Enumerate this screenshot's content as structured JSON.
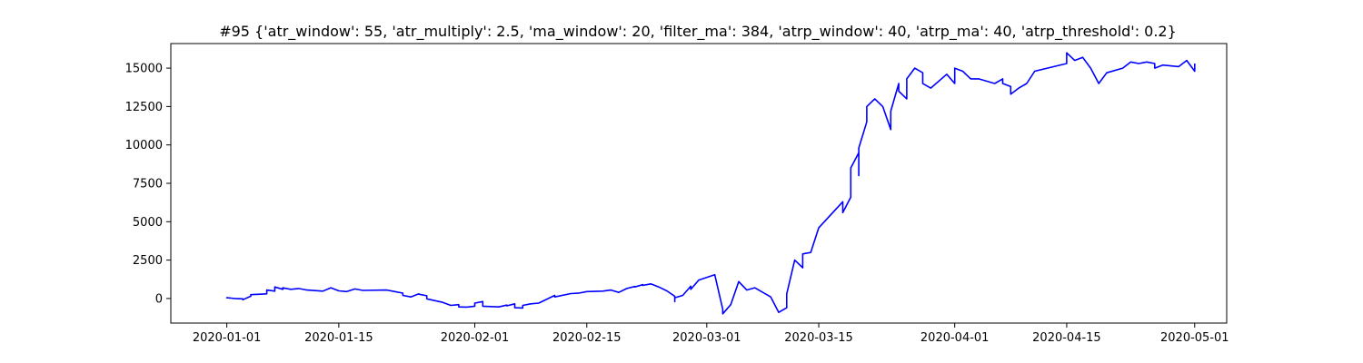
{
  "chart_data": {
    "type": "line",
    "title": "#95 {'atr_window': 55, 'atr_multiply': 2.5, 'ma_window': 20, 'filter_ma': 384, 'atrp_window': 40, 'atrp_ma': 40, 'atrp_threshold': 0.2}",
    "xlabel": "",
    "ylabel": "",
    "x_axis": "date",
    "xlim": [
      "2019-12-25",
      "2020-05-05"
    ],
    "ylim": [
      -1600,
      16600
    ],
    "grid": false,
    "x_ticks": [
      "2020-01-01",
      "2020-01-15",
      "2020-02-01",
      "2020-02-15",
      "2020-03-01",
      "2020-03-15",
      "2020-04-01",
      "2020-04-15",
      "2020-05-01"
    ],
    "y_ticks": [
      0,
      2500,
      5000,
      7500,
      10000,
      12500,
      15000
    ],
    "series": [
      {
        "color": "#0000ff",
        "points": [
          [
            "2020-01-01",
            0
          ],
          [
            "2020-01-01",
            50
          ],
          [
            "2020-01-02",
            0
          ],
          [
            "2020-01-03",
            -20
          ],
          [
            "2020-01-03",
            -80
          ],
          [
            "2020-01-04",
            150
          ],
          [
            "2020-01-04",
            250
          ],
          [
            "2020-01-06",
            300
          ],
          [
            "2020-01-06",
            550
          ],
          [
            "2020-01-07",
            480
          ],
          [
            "2020-01-07",
            750
          ],
          [
            "2020-01-08",
            600
          ],
          [
            "2020-01-08",
            700
          ],
          [
            "2020-01-09",
            600
          ],
          [
            "2020-01-10",
            650
          ],
          [
            "2020-01-11",
            550
          ],
          [
            "2020-01-13",
            480
          ],
          [
            "2020-01-14",
            700
          ],
          [
            "2020-01-15",
            500
          ],
          [
            "2020-01-16",
            450
          ],
          [
            "2020-01-17",
            620
          ],
          [
            "2020-01-18",
            530
          ],
          [
            "2020-01-21",
            550
          ],
          [
            "2020-01-22",
            450
          ],
          [
            "2020-01-23",
            350
          ],
          [
            "2020-01-23",
            200
          ],
          [
            "2020-01-24",
            100
          ],
          [
            "2020-01-25",
            300
          ],
          [
            "2020-01-25",
            280
          ],
          [
            "2020-01-26",
            180
          ],
          [
            "2020-01-26",
            -20
          ],
          [
            "2020-01-28",
            -250
          ],
          [
            "2020-01-29",
            -450
          ],
          [
            "2020-01-30",
            -400
          ],
          [
            "2020-01-30",
            -550
          ],
          [
            "2020-01-31",
            -560
          ],
          [
            "2020-02-01",
            -500
          ],
          [
            "2020-02-01",
            -300
          ],
          [
            "2020-02-02",
            -200
          ],
          [
            "2020-02-02",
            -500
          ],
          [
            "2020-02-04",
            -550
          ],
          [
            "2020-02-05",
            -430
          ],
          [
            "2020-02-05",
            -480
          ],
          [
            "2020-02-06",
            -350
          ],
          [
            "2020-02-06",
            -600
          ],
          [
            "2020-02-07",
            -620
          ],
          [
            "2020-02-07",
            -450
          ],
          [
            "2020-02-08",
            -350
          ],
          [
            "2020-02-09",
            -300
          ],
          [
            "2020-02-11",
            200
          ],
          [
            "2020-02-11",
            100
          ],
          [
            "2020-02-13",
            320
          ],
          [
            "2020-02-14",
            350
          ],
          [
            "2020-02-15",
            450
          ],
          [
            "2020-02-17",
            480
          ],
          [
            "2020-02-18",
            550
          ],
          [
            "2020-02-19",
            400
          ],
          [
            "2020-02-20",
            650
          ],
          [
            "2020-02-21",
            780
          ],
          [
            "2020-02-21",
            750
          ],
          [
            "2020-02-22",
            900
          ],
          [
            "2020-02-22",
            850
          ],
          [
            "2020-02-23",
            950
          ],
          [
            "2020-02-24",
            750
          ],
          [
            "2020-02-25",
            500
          ],
          [
            "2020-02-26",
            150
          ],
          [
            "2020-02-26",
            -200
          ],
          [
            "2020-02-26",
            50
          ],
          [
            "2020-02-27",
            200
          ],
          [
            "2020-02-28",
            800
          ],
          [
            "2020-02-28",
            600
          ],
          [
            "2020-02-29",
            1200
          ],
          [
            "2020-03-02",
            1550
          ],
          [
            "2020-03-03",
            -700
          ],
          [
            "2020-03-03",
            -900
          ],
          [
            "2020-03-03",
            -1000
          ],
          [
            "2020-03-04",
            -400
          ],
          [
            "2020-03-05",
            1100
          ],
          [
            "2020-03-06",
            550
          ],
          [
            "2020-03-07",
            700
          ],
          [
            "2020-03-09",
            100
          ],
          [
            "2020-03-10",
            -900
          ],
          [
            "2020-03-11",
            -600
          ],
          [
            "2020-03-11",
            300
          ],
          [
            "2020-03-12",
            2500
          ],
          [
            "2020-03-13",
            2000
          ],
          [
            "2020-03-13",
            2900
          ],
          [
            "2020-03-14",
            3000
          ],
          [
            "2020-03-15",
            4600
          ],
          [
            "2020-03-18",
            6300
          ],
          [
            "2020-03-18",
            5600
          ],
          [
            "2020-03-19",
            6600
          ],
          [
            "2020-03-19",
            8500
          ],
          [
            "2020-03-20",
            9500
          ],
          [
            "2020-03-20",
            8000
          ],
          [
            "2020-03-20",
            9800
          ],
          [
            "2020-03-21",
            11500
          ],
          [
            "2020-03-21",
            12500
          ],
          [
            "2020-03-22",
            13000
          ],
          [
            "2020-03-23",
            12500
          ],
          [
            "2020-03-24",
            11000
          ],
          [
            "2020-03-24",
            12200
          ],
          [
            "2020-03-25",
            14000
          ],
          [
            "2020-03-25",
            13500
          ],
          [
            "2020-03-26",
            13000
          ],
          [
            "2020-03-26",
            14300
          ],
          [
            "2020-03-27",
            15000
          ],
          [
            "2020-03-28",
            14700
          ],
          [
            "2020-03-28",
            14000
          ],
          [
            "2020-03-29",
            13700
          ],
          [
            "2020-03-31",
            14600
          ],
          [
            "2020-04-01",
            14000
          ],
          [
            "2020-04-01",
            15000
          ],
          [
            "2020-04-02",
            14800
          ],
          [
            "2020-04-03",
            14300
          ],
          [
            "2020-04-04",
            14300
          ],
          [
            "2020-04-06",
            14000
          ],
          [
            "2020-04-07",
            14300
          ],
          [
            "2020-04-07",
            14000
          ],
          [
            "2020-04-08",
            13800
          ],
          [
            "2020-04-08",
            13300
          ],
          [
            "2020-04-09",
            13700
          ],
          [
            "2020-04-10",
            14000
          ],
          [
            "2020-04-11",
            14800
          ],
          [
            "2020-04-15",
            15300
          ],
          [
            "2020-04-15",
            16000
          ],
          [
            "2020-04-16",
            15500
          ],
          [
            "2020-04-17",
            15700
          ],
          [
            "2020-04-18",
            15000
          ],
          [
            "2020-04-19",
            14000
          ],
          [
            "2020-04-20",
            14700
          ],
          [
            "2020-04-22",
            15000
          ],
          [
            "2020-04-23",
            15400
          ],
          [
            "2020-04-24",
            15300
          ],
          [
            "2020-04-25",
            15400
          ],
          [
            "2020-04-26",
            15300
          ],
          [
            "2020-04-26",
            15000
          ],
          [
            "2020-04-27",
            15200
          ],
          [
            "2020-04-29",
            15100
          ],
          [
            "2020-04-30",
            15500
          ],
          [
            "2020-05-01",
            14800
          ],
          [
            "2020-05-01",
            15300
          ]
        ]
      }
    ]
  }
}
